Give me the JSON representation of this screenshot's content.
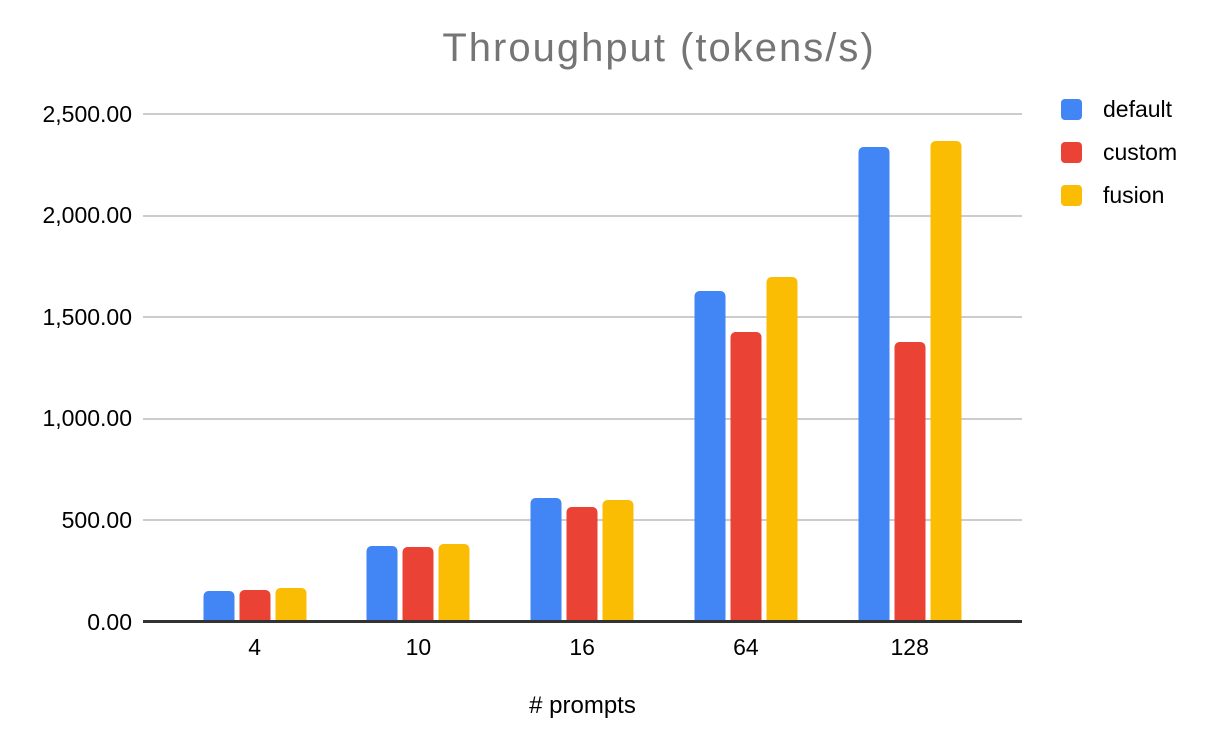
{
  "chart_data": {
    "type": "bar",
    "title": "Throughput (tokens/s)",
    "xlabel": "# prompts",
    "ylabel": "",
    "categories": [
      "4",
      "10",
      "16",
      "64",
      "128"
    ],
    "series": [
      {
        "name": "default",
        "color": "#4285F4",
        "values": [
          155,
          372,
          610,
          1630,
          2340
        ]
      },
      {
        "name": "custom",
        "color": "#EA4335",
        "values": [
          158,
          371,
          568,
          1425,
          1377
        ]
      },
      {
        "name": "fusion",
        "color": "#FBBC04",
        "values": [
          168,
          384,
          600,
          1700,
          2368
        ]
      }
    ],
    "ylim": [
      0,
      2500
    ],
    "yticks": [
      0,
      500,
      1000,
      1500,
      2000,
      2500
    ],
    "ytick_labels": [
      "0.00",
      "500.00",
      "1,000.00",
      "1,500.00",
      "2,000.00",
      "2,500.00"
    ],
    "grid": true,
    "legend_position": "top-right",
    "colors": {
      "title_text": "#757575",
      "axis_line": "#333333",
      "gridline": "#cccccc",
      "tick_text": "#000000",
      "legend_text": "#000000"
    }
  }
}
